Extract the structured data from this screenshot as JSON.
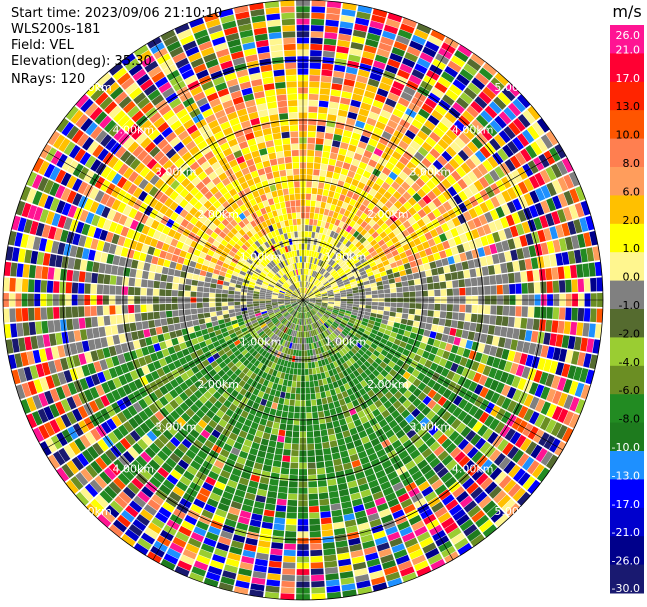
{
  "header": {
    "start_time": "Start time: 2023/09/06 21:10:10",
    "instrument": "WLS200s-181",
    "field": "Field: VEL",
    "elevation": "Elevation(deg): 35.30",
    "nrays": "NRays: 120"
  },
  "chart_data": {
    "type": "heatmap",
    "projection": "polar-ppi",
    "field": "VEL",
    "n_rays": 120,
    "range_rings_km": [
      1.0,
      2.0,
      3.0,
      4.0,
      5.0
    ],
    "ring_labels": [
      "1.00km",
      "2.00km",
      "3.00km",
      "4.00km",
      "5.00km"
    ],
    "max_range_km": 5.0,
    "colorbar": {
      "unit": "m/s",
      "tick_labels": [
        "26.0",
        "21.0",
        "17.0",
        "13.0",
        "10.0",
        "8.0",
        "6.0",
        "2.0",
        "1.0",
        "0.0",
        "-1.0",
        "-2.0",
        "-4.0",
        "-6.0",
        "-8.0",
        "-10.0",
        "-13.0",
        "-17.0",
        "-21.0",
        "-26.0",
        "-30.0"
      ],
      "colors": [
        "#ff1493",
        "#ff0033",
        "#ff2400",
        "#ff5500",
        "#ff7f50",
        "#ff9d5c",
        "#ffc000",
        "#ffff00",
        "#fff68f",
        "#808080",
        "#556b2f",
        "#9acd32",
        "#6b8e23",
        "#228b22",
        "#1e7b1e",
        "#1e90ff",
        "#0000ff",
        "#0000cd",
        "#00008b",
        "#191970"
      ]
    },
    "pattern": {
      "north_half": "positive velocities (yellow / orange)",
      "south_half": "negative velocities (green)",
      "near_zero_band": "gray along east-west axis",
      "outer_region": "noisy, all colors"
    }
  }
}
